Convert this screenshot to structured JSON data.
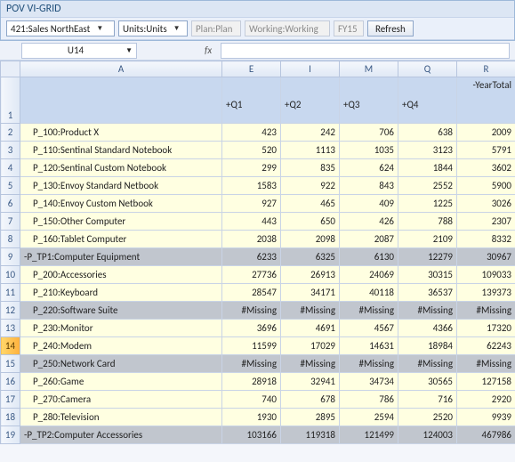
{
  "title": "POV VI-GRID",
  "toolbar": {
    "entity": "421:Sales NorthEast",
    "units": "Units:Units",
    "plan": "Plan:Plan",
    "working": "Working:Working",
    "year": "FY15",
    "refresh": "Refresh"
  },
  "namebox": "U14",
  "fx_label": "fx",
  "colLetters": [
    "A",
    "E",
    "I",
    "M",
    "Q",
    "R"
  ],
  "headerBand": [
    "",
    "+Q1",
    "+Q2",
    "+Q3",
    "+Q4",
    "-YearTotal"
  ],
  "rows": [
    {
      "n": "2",
      "label": "P_100:Product X",
      "v": [
        "423",
        "242",
        "706",
        "638",
        "2009"
      ]
    },
    {
      "n": "3",
      "label": "P_110:Sentinal Standard Notebook",
      "v": [
        "520",
        "1113",
        "1035",
        "3123",
        "5791"
      ]
    },
    {
      "n": "4",
      "label": "P_120:Sentinal Custom Notebook",
      "v": [
        "299",
        "835",
        "624",
        "1844",
        "3602"
      ]
    },
    {
      "n": "5",
      "label": "P_130:Envoy Standard Netbook",
      "v": [
        "1583",
        "922",
        "843",
        "2552",
        "5900"
      ]
    },
    {
      "n": "6",
      "label": "P_140:Envoy Custom Netbook",
      "v": [
        "927",
        "465",
        "409",
        "1225",
        "3026"
      ]
    },
    {
      "n": "7",
      "label": "P_150:Other Computer",
      "v": [
        "443",
        "650",
        "426",
        "788",
        "2307"
      ]
    },
    {
      "n": "8",
      "label": "P_160:Tablet Computer",
      "v": [
        "2038",
        "2098",
        "2087",
        "2109",
        "8332"
      ]
    },
    {
      "n": "9",
      "label": "-P_TP1:Computer Equipment",
      "v": [
        "6233",
        "6325",
        "6130",
        "12279",
        "30967"
      ],
      "grey": true,
      "top": true
    },
    {
      "n": "10",
      "label": "P_200:Accessories",
      "v": [
        "27736",
        "26913",
        "24069",
        "30315",
        "109033"
      ]
    },
    {
      "n": "11",
      "label": "P_210:Keyboard",
      "v": [
        "28547",
        "34171",
        "40118",
        "36537",
        "139373"
      ]
    },
    {
      "n": "12",
      "label": "P_220:Software Suite",
      "v": [
        "#Missing",
        "#Missing",
        "#Missing",
        "#Missing",
        "#Missing"
      ],
      "grey": true
    },
    {
      "n": "13",
      "label": "P_230:Monitor",
      "v": [
        "3696",
        "4691",
        "4567",
        "4366",
        "17320"
      ]
    },
    {
      "n": "14",
      "label": "P_240:Modem",
      "v": [
        "11599",
        "17029",
        "14631",
        "18984",
        "62243"
      ],
      "sel": true
    },
    {
      "n": "15",
      "label": "P_250:Network Card",
      "v": [
        "#Missing",
        "#Missing",
        "#Missing",
        "#Missing",
        "#Missing"
      ],
      "grey": true
    },
    {
      "n": "16",
      "label": "P_260:Game",
      "v": [
        "28918",
        "32941",
        "34734",
        "30565",
        "127158"
      ]
    },
    {
      "n": "17",
      "label": "P_270:Camera",
      "v": [
        "740",
        "678",
        "786",
        "716",
        "2920"
      ]
    },
    {
      "n": "18",
      "label": "P_280:Television",
      "v": [
        "1930",
        "2895",
        "2594",
        "2520",
        "9939"
      ]
    },
    {
      "n": "19",
      "label": "-P_TP2:Computer Accessories",
      "v": [
        "103166",
        "119318",
        "121499",
        "124003",
        "467986"
      ],
      "grey": true,
      "top": true
    }
  ]
}
